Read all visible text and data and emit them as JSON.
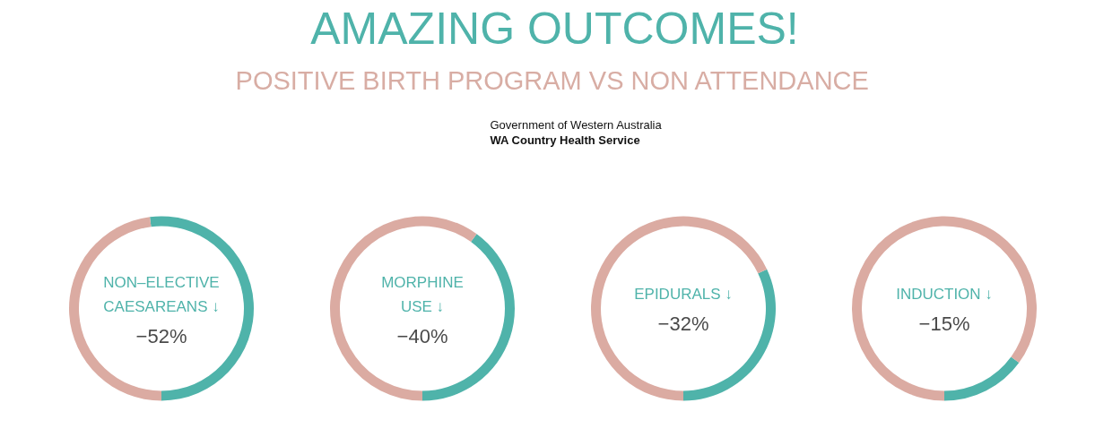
{
  "chart_data": [
    {
      "type": "other",
      "title": "AMAZING OUTCOMES!",
      "subtitle": "POSITIVE BIRTH PROGRAM VS NON ATTENDANCE",
      "annotations": [
        "Government of Western Australia",
        "WA Country Health Service"
      ]
    },
    {
      "type": "donut",
      "title": "NON–ELECTIVE\nCAESAREANS ↓",
      "categories": [
        null,
        null
      ],
      "values": [
        52,
        48
      ],
      "colors": [
        "#4fb3aa",
        "#dbaba2"
      ],
      "annotations": [
        "−52%"
      ]
    },
    {
      "type": "donut",
      "title": "MORPHINE\nUSE ↓",
      "categories": [
        null,
        null
      ],
      "values": [
        40,
        60
      ],
      "colors": [
        "#4fb3aa",
        "#dbaba2"
      ],
      "annotations": [
        "−40%"
      ]
    },
    {
      "type": "donut",
      "title": "EPIDURALS ↓",
      "categories": [
        null,
        null
      ],
      "values": [
        32,
        68
      ],
      "colors": [
        "#4fb3aa",
        "#dbaba2"
      ],
      "annotations": [
        "−32%"
      ]
    },
    {
      "type": "donut",
      "title": "INDUCTION ↓",
      "categories": [
        null,
        null
      ],
      "values": [
        15,
        85
      ],
      "colors": [
        "#4fb3aa",
        "#dbaba2"
      ],
      "annotations": [
        "−15%"
      ]
    }
  ]
}
